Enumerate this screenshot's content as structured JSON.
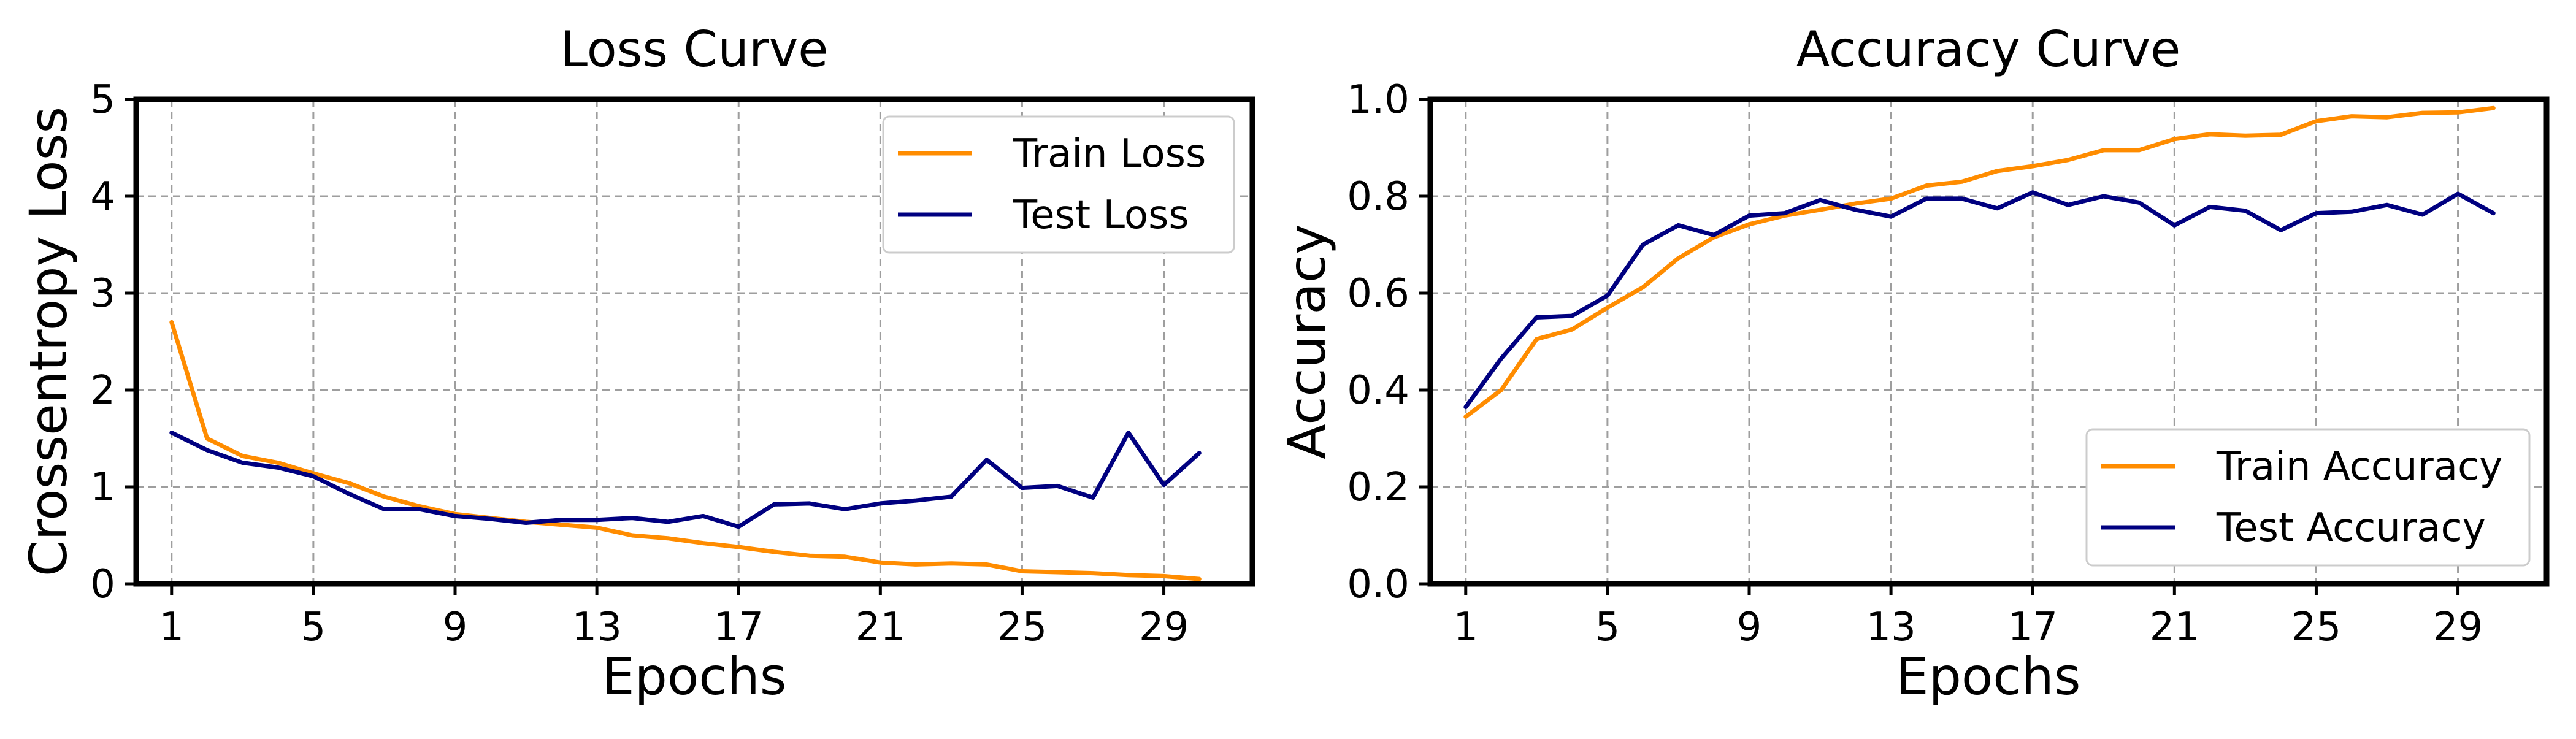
{
  "chart_data": [
    {
      "type": "line",
      "title": "Loss Curve",
      "xlabel": "Epochs",
      "ylabel": "Crossentropy Loss",
      "xlim": [
        0,
        31.5
      ],
      "ylim": [
        0,
        5
      ],
      "xticks": [
        1,
        5,
        9,
        13,
        17,
        21,
        25,
        29
      ],
      "yticks": [
        0,
        1,
        2,
        3,
        4,
        5
      ],
      "grid": true,
      "legend_position": "top-right",
      "x": [
        1,
        2,
        3,
        4,
        5,
        6,
        7,
        8,
        9,
        10,
        11,
        12,
        13,
        14,
        15,
        16,
        17,
        18,
        19,
        20,
        21,
        22,
        23,
        24,
        25,
        26,
        27,
        28,
        29,
        30
      ],
      "series": [
        {
          "name": "Train Loss",
          "color": "#FF8C00",
          "values": [
            2.7,
            1.5,
            1.32,
            1.25,
            1.14,
            1.04,
            0.9,
            0.8,
            0.72,
            0.68,
            0.64,
            0.61,
            0.58,
            0.5,
            0.47,
            0.42,
            0.38,
            0.33,
            0.29,
            0.28,
            0.22,
            0.2,
            0.21,
            0.2,
            0.13,
            0.12,
            0.11,
            0.09,
            0.08,
            0.05
          ]
        },
        {
          "name": "Test Loss",
          "color": "#000080",
          "values": [
            1.56,
            1.38,
            1.25,
            1.2,
            1.11,
            0.93,
            0.77,
            0.77,
            0.7,
            0.67,
            0.63,
            0.66,
            0.66,
            0.68,
            0.64,
            0.7,
            0.59,
            0.82,
            0.83,
            0.77,
            0.83,
            0.86,
            0.9,
            1.28,
            0.99,
            1.01,
            0.89,
            1.56,
            1.02,
            1.35
          ]
        }
      ]
    },
    {
      "type": "line",
      "title": "Accuracy Curve",
      "xlabel": "Epochs",
      "ylabel": "Accuracy",
      "xlim": [
        0,
        31.5
      ],
      "ylim": [
        0,
        1.0
      ],
      "xticks": [
        1,
        5,
        9,
        13,
        17,
        21,
        25,
        29
      ],
      "yticks": [
        0.0,
        0.2,
        0.4,
        0.6,
        0.8,
        1.0
      ],
      "grid": true,
      "legend_position": "bottom-right",
      "x": [
        1,
        2,
        3,
        4,
        5,
        6,
        7,
        8,
        9,
        10,
        11,
        12,
        13,
        14,
        15,
        16,
        17,
        18,
        19,
        20,
        21,
        22,
        23,
        24,
        25,
        26,
        27,
        28,
        29,
        30
      ],
      "series": [
        {
          "name": "Train Accuracy",
          "color": "#FF8C00",
          "values": [
            0.345,
            0.4,
            0.505,
            0.525,
            0.57,
            0.612,
            0.672,
            0.715,
            0.742,
            0.76,
            0.772,
            0.785,
            0.795,
            0.822,
            0.83,
            0.852,
            0.862,
            0.875,
            0.895,
            0.895,
            0.918,
            0.928,
            0.925,
            0.927,
            0.955,
            0.965,
            0.963,
            0.972,
            0.973,
            0.982
          ]
        },
        {
          "name": "Test Accuracy",
          "color": "#000080",
          "values": [
            0.365,
            0.465,
            0.55,
            0.553,
            0.595,
            0.7,
            0.74,
            0.72,
            0.76,
            0.765,
            0.792,
            0.772,
            0.758,
            0.795,
            0.795,
            0.775,
            0.808,
            0.782,
            0.8,
            0.787,
            0.74,
            0.778,
            0.77,
            0.73,
            0.765,
            0.768,
            0.782,
            0.762,
            0.805,
            0.765
          ]
        }
      ]
    }
  ]
}
